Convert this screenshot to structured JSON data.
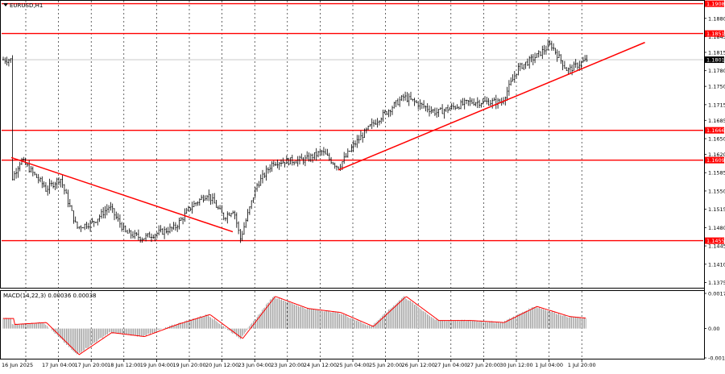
{
  "chart_title": "EURUSD,H1",
  "macd_title": "MACD(14,22,3) 0.00036 0.00038",
  "main_price_axis": [
    "1.1908",
    "1.1880",
    "1.1851",
    "1.1845",
    "1.1815",
    "1.1801",
    "1.1780",
    "1.1750",
    "1.1715",
    "1.1685",
    "1.1666",
    "1.1650",
    "1.1620",
    "1.1609",
    "1.1585",
    "1.1550",
    "1.1515",
    "1.1480",
    "1.1455",
    "1.1445",
    "1.1410",
    "1.1375"
  ],
  "level_labels": [
    {
      "id": "l1908",
      "label": "1.1908"
    },
    {
      "id": "l1851",
      "label": "1.1851"
    },
    {
      "id": "l1666",
      "label": "1.1666"
    },
    {
      "id": "l1609",
      "label": "1.1609"
    },
    {
      "id": "l1455",
      "label": "1.1455"
    }
  ],
  "current_price": "1.1801",
  "macd_axis": [
    "0.00175",
    "0.00",
    "-0.00146"
  ],
  "time_axis": [
    "16 Jun 2025",
    "17 Jun 04:00",
    "17 Jun 20:00",
    "18 Jun 12:00",
    "19 Jun 04:00",
    "19 Jun 20:00",
    "20 Jun 12:00",
    "23 Jun 04:00",
    "23 Jun 20:00",
    "24 Jun 12:00",
    "25 Jun 04:00",
    "25 Jun 20:00",
    "26 Jun 12:00",
    "27 Jun 04:00",
    "27 Jun 20:00",
    "30 Jun 12:00",
    "1 Jul 04:00",
    "1 Jul 20:00"
  ],
  "colors": {
    "level": "#ff0000",
    "trend": "#ff0000",
    "candle": "#000000",
    "macd_signal": "#ff0000",
    "grid": "#000000"
  },
  "chart_data": {
    "type": "candlestick",
    "symbol": "EURUSD",
    "timeframe": "H1",
    "ylim": [
      1.1365,
      1.1912
    ],
    "horizontal_levels": [
      1.1908,
      1.1851,
      1.1666,
      1.1609,
      1.1455
    ],
    "trend_lines": [
      {
        "start": [
          "16 Jun 2025",
          1.1614
        ],
        "end": [
          "19 Jun 20:00",
          1.146
        ]
      },
      {
        "start": [
          "25 Jun 04:00",
          1.159
        ],
        "end": [
          "2 Jul",
          1.1822
        ]
      }
    ],
    "close_path": [
      {
        "t": "16 Jun 2025",
        "p": 1.157
      },
      {
        "t": "16 Jun",
        "p": 1.161
      },
      {
        "t": "17 Jun 04:00",
        "p": 1.156
      },
      {
        "t": "17 Jun 04:00",
        "p": 1.155
      },
      {
        "t": "17 Jun 12:00",
        "p": 1.1575
      },
      {
        "t": "17 Jun 20:00",
        "p": 1.148
      },
      {
        "t": "18 Jun",
        "p": 1.149
      },
      {
        "t": "18 Jun 12:00",
        "p": 1.152
      },
      {
        "t": "18 Jun 20:00",
        "p": 1.147
      },
      {
        "t": "19 Jun 04:00",
        "p": 1.146
      },
      {
        "t": "19 Jun 20:00",
        "p": 1.148
      },
      {
        "t": "20 Jun",
        "p": 1.152
      },
      {
        "t": "20 Jun 12:00",
        "p": 1.1545
      },
      {
        "t": "20 Jun 20:00",
        "p": 1.15
      },
      {
        "t": "23 Jun",
        "p": 1.1515
      },
      {
        "t": "23 Jun 04:00",
        "p": 1.1458
      },
      {
        "t": "23 Jun 12:00",
        "p": 1.156
      },
      {
        "t": "23 Jun 20:00",
        "p": 1.1605
      },
      {
        "t": "24 Jun 12:00",
        "p": 1.161
      },
      {
        "t": "24 Jun 20:00",
        "p": 1.1625
      },
      {
        "t": "25 Jun 04:00",
        "p": 1.1595
      },
      {
        "t": "25 Jun 12:00",
        "p": 1.164
      },
      {
        "t": "25 Jun 20:00",
        "p": 1.1675
      },
      {
        "t": "26 Jun 12:00",
        "p": 1.173
      },
      {
        "t": "27 Jun 04:00",
        "p": 1.17
      },
      {
        "t": "27 Jun 20:00",
        "p": 1.172
      },
      {
        "t": "30 Jun 12:00",
        "p": 1.172
      },
      {
        "t": "30 Jun 20:00",
        "p": 1.1785
      },
      {
        "t": "1 Jul 04:00",
        "p": 1.1805
      },
      {
        "t": "1 Jul 12:00",
        "p": 1.183
      },
      {
        "t": "1 Jul 20:00",
        "p": 1.178
      },
      {
        "t": "2 Jul",
        "p": 1.1801
      }
    ],
    "macd": {
      "params": [
        14,
        22,
        3
      ],
      "ylim": [
        -0.00146,
        0.00175
      ],
      "path": [
        {
          "t": "16 Jun 2025",
          "v": 0.0002
        },
        {
          "t": "17 Jun 04:00",
          "v": 0.0003
        },
        {
          "t": "17 Jun 20:00",
          "v": -0.0013
        },
        {
          "t": "18 Jun 12:00",
          "v": -0.0002
        },
        {
          "t": "19 Jun 04:00",
          "v": -0.0004
        },
        {
          "t": "19 Jun 20:00",
          "v": 0.0002
        },
        {
          "t": "20 Jun 12:00",
          "v": 0.0007
        },
        {
          "t": "23 Jun 04:00",
          "v": -0.0005
        },
        {
          "t": "23 Jun 20:00",
          "v": 0.0016
        },
        {
          "t": "24 Jun 12:00",
          "v": 0.001
        },
        {
          "t": "25 Jun 04:00",
          "v": 0.0008
        },
        {
          "t": "25 Jun 20:00",
          "v": 0.0001
        },
        {
          "t": "26 Jun 12:00",
          "v": 0.0016
        },
        {
          "t": "27 Jun 04:00",
          "v": 0.0004
        },
        {
          "t": "27 Jun 20:00",
          "v": 0.0004
        },
        {
          "t": "30 Jun 12:00",
          "v": 0.0003
        },
        {
          "t": "1 Jul 04:00",
          "v": 0.0011
        },
        {
          "t": "1 Jul 20:00",
          "v": 0.0006
        },
        {
          "t": "2 Jul",
          "v": 0.0005
        }
      ]
    }
  }
}
